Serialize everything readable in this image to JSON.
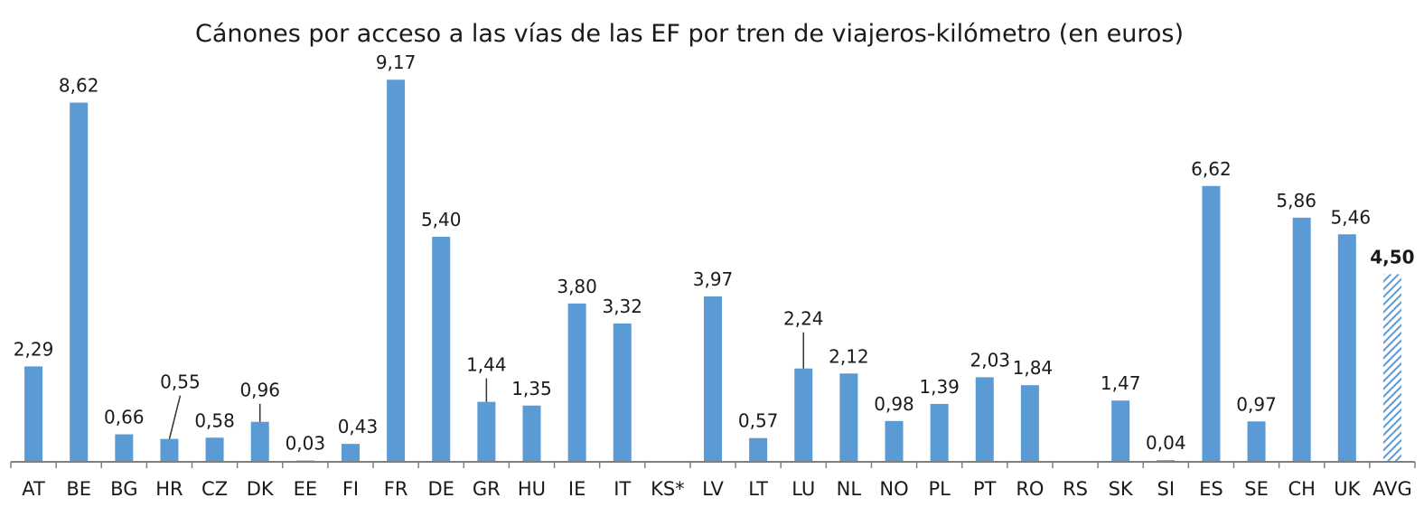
{
  "chart_data": {
    "type": "bar",
    "title": "Cánones por acceso a las vías de las EF por tren de viajeros-kilómetro (en euros)",
    "xlabel": "",
    "ylabel": "",
    "ylim": [
      0,
      9.5
    ],
    "grid": false,
    "legend": "none",
    "categories": [
      "AT",
      "BE",
      "BG",
      "HR",
      "CZ",
      "DK",
      "EE",
      "FI",
      "FR",
      "DE",
      "GR",
      "HU",
      "IE",
      "IT",
      "KS*",
      "LV",
      "LT",
      "LU",
      "NL",
      "NO",
      "PL",
      "PT",
      "RO",
      "RS",
      "SK",
      "SI",
      "ES",
      "SE",
      "CH",
      "UK",
      "AVG"
    ],
    "values": [
      2.29,
      8.62,
      0.66,
      0.55,
      0.58,
      0.96,
      0.03,
      0.43,
      9.17,
      5.4,
      1.44,
      1.35,
      3.8,
      3.32,
      null,
      3.97,
      0.57,
      2.24,
      2.12,
      0.98,
      1.39,
      2.03,
      1.84,
      null,
      1.47,
      0.04,
      6.62,
      0.97,
      5.86,
      5.46,
      4.5
    ],
    "data_labels": [
      "2,29",
      "8,62",
      "0,66",
      "0,55",
      "0,58",
      "0,96",
      "0,03",
      "0,43",
      "9,17",
      "5,40",
      "1,44",
      "1,35",
      "3,80",
      "3,32",
      "",
      "3,97",
      "0,57",
      "2,24",
      "2,12",
      "0,98",
      "1,39",
      "2,03",
      "1,84",
      "",
      "1,47",
      "0,04",
      "6,62",
      "0,97",
      "5,86",
      "5,46",
      "4,50"
    ],
    "highlight_category": "AVG",
    "colors": {
      "bar": "#5b9bd5",
      "avg_hatch": "#5b9bd5",
      "axis": "#7f7f7f",
      "text": "#1a1a1a"
    }
  }
}
